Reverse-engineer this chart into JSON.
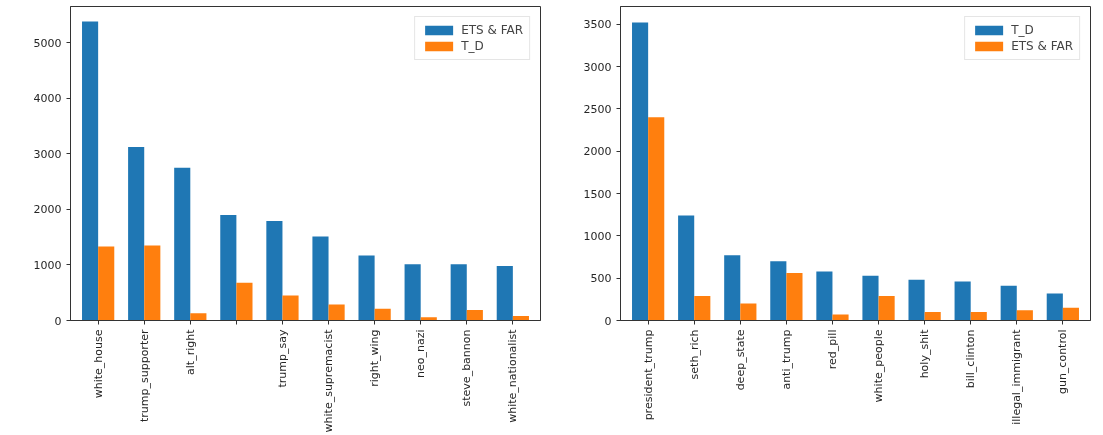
{
  "chart_data": [
    {
      "type": "bar",
      "categories": [
        "white_house",
        "trump_supporter",
        "alt_right",
        null,
        "trump_say",
        "white_supremacist",
        "right_wing",
        "neo_nazi",
        "steve_bannon",
        "white_nationalist"
      ],
      "series": [
        {
          "name": "ETS & FAR",
          "color": "#1f77b4",
          "values": [
            5380,
            3120,
            2750,
            1900,
            1790,
            1510,
            1170,
            1010,
            1010,
            980
          ]
        },
        {
          "name": "T_D",
          "color": "#ff7f0e",
          "values": [
            1330,
            1350,
            130,
            680,
            450,
            290,
            210,
            60,
            190,
            80
          ]
        }
      ],
      "ylim": [
        0,
        5650
      ],
      "yticks": [
        0,
        1000,
        2000,
        3000,
        4000,
        5000
      ],
      "legend": "top right",
      "grid": false
    },
    {
      "type": "bar",
      "categories": [
        "president_trump",
        "seth_rich",
        "deep_state",
        "anti_trump",
        "red_pill",
        "white_people",
        "holy_shit",
        "bill_clinton",
        "illegal_immigrant",
        "gun_control"
      ],
      "series": [
        {
          "name": "T_D",
          "color": "#1f77b4",
          "values": [
            3520,
            1240,
            770,
            700,
            580,
            530,
            480,
            460,
            410,
            320
          ]
        },
        {
          "name": "ETS & FAR",
          "color": "#ff7f0e",
          "values": [
            2400,
            290,
            200,
            560,
            70,
            290,
            100,
            100,
            120,
            150
          ]
        }
      ],
      "ylim": [
        0,
        3710
      ],
      "yticks": [
        0,
        500,
        1000,
        1500,
        2000,
        2500,
        3000,
        3500
      ],
      "legend": "top right",
      "grid": false
    }
  ]
}
